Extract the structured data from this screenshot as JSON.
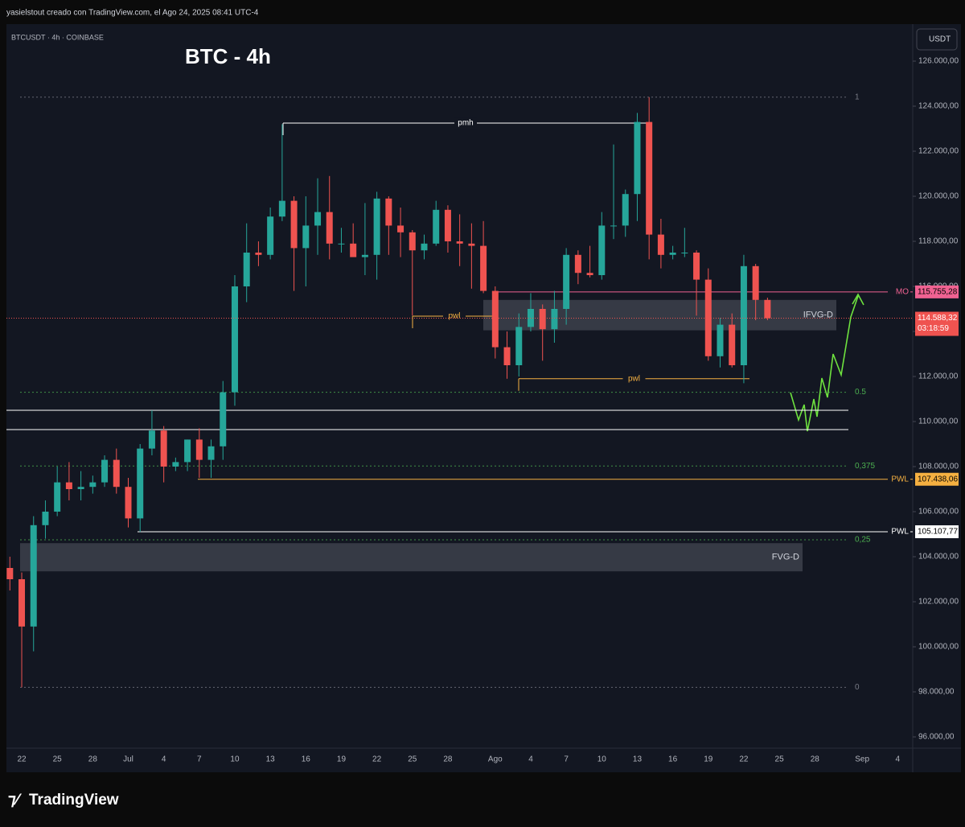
{
  "header": {
    "credit": "yasielstout creado con TradingView.com, el Ago 24, 2025 08:41 UTC-4"
  },
  "footer": {
    "brand": "TradingView"
  },
  "chart_data": {
    "type": "candlestick",
    "title": "BTC - 4h",
    "symbol": "BTCUSDT · 4h · COINBASE",
    "currency": "USDT",
    "up_color": "#26a69a",
    "down_color": "#ef5350",
    "categories": [
      null,
      "22",
      null,
      null,
      "25",
      null,
      null,
      "28",
      null,
      null,
      "Jul",
      null,
      null,
      "4",
      null,
      null,
      "7",
      null,
      null,
      "10",
      null,
      null,
      "13",
      null,
      null,
      "16",
      null,
      null,
      "19",
      null,
      null,
      "22",
      null,
      null,
      "25",
      null,
      null,
      "28",
      null,
      null,
      null,
      "Ago",
      null,
      null,
      "4",
      null,
      null,
      "7",
      null,
      null,
      "10",
      null,
      null,
      "13",
      null,
      null,
      "16",
      null,
      null,
      "19",
      null,
      null,
      "22",
      null,
      null,
      "25",
      null,
      null,
      "28",
      null,
      null,
      null,
      "Sep",
      null,
      null,
      "4",
      null
    ],
    "open": [
      103500,
      103000,
      100900,
      105400,
      106000,
      107300,
      107000,
      107100,
      107300,
      108300,
      107100,
      105700,
      108800,
      109600,
      108000,
      108200,
      109200,
      108300,
      108900,
      111300,
      116000,
      117500,
      117400,
      119100,
      119800,
      117700,
      118700,
      119300,
      117900,
      117900,
      117300,
      117400,
      119900,
      118700,
      118400,
      117600,
      117900,
      119400,
      118000,
      117900,
      117800,
      115800,
      113300,
      112500,
      114200,
      115000,
      114100,
      115000,
      117400,
      116600,
      116500,
      118700,
      118700,
      120100,
      123300,
      118300,
      117400,
      117500,
      117500,
      116300,
      112900,
      114300,
      112500,
      116900,
      115400,
      null,
      null,
      null,
      null,
      null,
      null,
      null,
      null,
      null,
      null,
      null,
      null
    ],
    "high": [
      104000,
      103300,
      105800,
      106500,
      108000,
      108200,
      107800,
      107600,
      108500,
      108800,
      107500,
      109000,
      110500,
      109800,
      108400,
      109200,
      109700,
      109200,
      111800,
      116500,
      118800,
      118000,
      119500,
      123200,
      120000,
      120000,
      120800,
      120900,
      118600,
      118800,
      119700,
      120200,
      120000,
      119500,
      118500,
      118300,
      119800,
      119600,
      119200,
      118800,
      118900,
      116000,
      114000,
      114800,
      115700,
      115200,
      115800,
      117700,
      117600,
      117800,
      119300,
      122300,
      120300,
      123700,
      124400,
      119000,
      117800,
      118600,
      117600,
      116800,
      114600,
      114800,
      117400,
      117000,
      115500,
      null,
      null,
      null,
      null,
      null,
      null,
      null,
      null,
      null,
      null,
      null,
      null
    ],
    "low": [
      102500,
      98200,
      99800,
      104800,
      105800,
      106500,
      106500,
      106800,
      107100,
      106800,
      105300,
      105100,
      108500,
      107300,
      107800,
      107800,
      107500,
      107500,
      108300,
      110700,
      115300,
      116900,
      117200,
      118900,
      115800,
      116000,
      117400,
      117200,
      117500,
      117400,
      116500,
      116300,
      117400,
      117300,
      114700,
      117200,
      117800,
      117500,
      116900,
      115900,
      115700,
      112800,
      111900,
      112000,
      114000,
      112700,
      113500,
      114300,
      116100,
      116400,
      116300,
      118100,
      118200,
      118900,
      117200,
      116800,
      117200,
      117300,
      114700,
      112700,
      112400,
      112400,
      111700,
      114500,
      114500,
      null,
      null,
      null,
      null,
      null,
      null,
      null,
      null,
      null,
      null,
      null,
      null
    ],
    "close": [
      103000,
      100900,
      105400,
      106000,
      107300,
      107000,
      107100,
      107300,
      108300,
      107100,
      105700,
      108800,
      109600,
      108000,
      108200,
      109200,
      108300,
      108900,
      111300,
      116000,
      117500,
      117400,
      119100,
      119800,
      117700,
      118700,
      119300,
      117900,
      117900,
      117300,
      117400,
      119900,
      118700,
      118400,
      117600,
      117900,
      119400,
      118000,
      117900,
      117800,
      115800,
      113300,
      112500,
      114200,
      115000,
      114100,
      115000,
      117400,
      116600,
      116500,
      118700,
      118700,
      120100,
      123300,
      118300,
      117400,
      117500,
      117500,
      116300,
      112900,
      114300,
      112500,
      116900,
      115400,
      114588.32,
      null,
      null,
      null,
      null,
      null,
      null,
      null,
      null,
      null,
      null,
      null,
      null
    ],
    "ylim": [
      95500,
      127643
    ],
    "yticks": [
      {
        "value": 96000,
        "label": "96.000,00"
      },
      {
        "value": 98000,
        "label": "98.000,00"
      },
      {
        "value": 100000,
        "label": "100.000,00"
      },
      {
        "value": 102000,
        "label": "102.000,00"
      },
      {
        "value": 104000,
        "label": "104.000,00"
      },
      {
        "value": 106000,
        "label": "106.000,00"
      },
      {
        "value": 108000,
        "label": "108.000,00"
      },
      {
        "value": 110000,
        "label": "110.000,00"
      },
      {
        "value": 112000,
        "label": "112.000,00"
      },
      {
        "value": 114000,
        "label": "114.000,00"
      },
      {
        "value": 116000,
        "label": "116.000,00"
      },
      {
        "value": 118000,
        "label": "118.000,00"
      },
      {
        "value": 120000,
        "label": "120.000,00"
      },
      {
        "value": 122000,
        "label": "122.000,00"
      },
      {
        "value": 124000,
        "label": "124.000,00"
      },
      {
        "value": 126000,
        "label": "126.000,00"
      }
    ],
    "last_price": {
      "value": 114588.32,
      "label": "114.588,32"
    },
    "countdown": "03:18:59",
    "levels": [
      {
        "label": "MO",
        "value": 115755.28,
        "value_label": "115.755,28",
        "color": "#f06292"
      },
      {
        "label": "PWL",
        "value": 107438.06,
        "value_label": "107.438,06",
        "color": "#f5b041"
      },
      {
        "label": "PWL",
        "value": 105107.77,
        "value_label": "105.107,77",
        "color": "#ffffff"
      }
    ],
    "zones": [
      {
        "label": "IFVG-D",
        "top": 115400,
        "bottom": 114050
      },
      {
        "label": "FVG-D",
        "top": 104600,
        "bottom": 103350
      }
    ],
    "segments": [
      {
        "label": "pmh",
        "value": 123250,
        "color": "#ffffff"
      },
      {
        "label": "pwl",
        "value": 114680,
        "color": "#f5b041"
      },
      {
        "label": "pwl",
        "value": 111900,
        "color": "#f5b041"
      }
    ],
    "fib": {
      "low": 98200,
      "high": 124400,
      "color": "#4caf50",
      "levels": [
        1,
        0.5,
        {
          "value": 0.375,
          "label": "0,375"
        },
        {
          "value": 0.25,
          "label": "0,25"
        },
        0
      ]
    }
  }
}
